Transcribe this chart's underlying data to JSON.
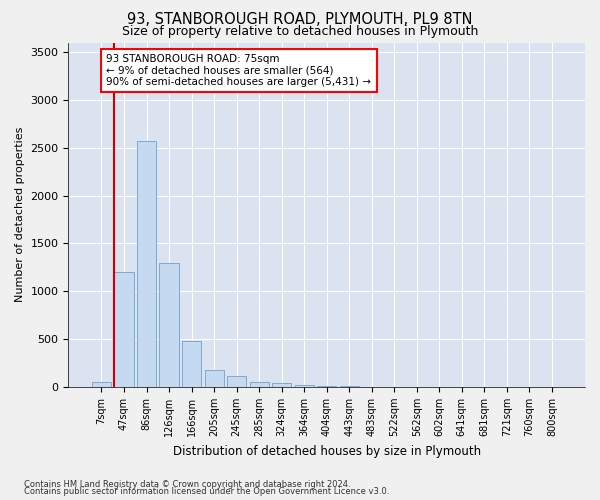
{
  "title1": "93, STANBOROUGH ROAD, PLYMOUTH, PL9 8TN",
  "title2": "Size of property relative to detached houses in Plymouth",
  "xlabel": "Distribution of detached houses by size in Plymouth",
  "ylabel": "Number of detached properties",
  "footnote1": "Contains HM Land Registry data © Crown copyright and database right 2024.",
  "footnote2": "Contains public sector information licensed under the Open Government Licence v3.0.",
  "annotation_line1": "93 STANBOROUGH ROAD: 75sqm",
  "annotation_line2": "← 9% of detached houses are smaller (564)",
  "annotation_line3": "90% of semi-detached houses are larger (5,431) →",
  "bar_color": "#c5d9f1",
  "bar_edge_color": "#7baad4",
  "marker_color": "#cc0000",
  "plot_bg_color": "#dce3f0",
  "fig_bg_color": "#f0f0f0",
  "bins": [
    "7sqm",
    "47sqm",
    "86sqm",
    "126sqm",
    "166sqm",
    "205sqm",
    "245sqm",
    "285sqm",
    "324sqm",
    "364sqm",
    "404sqm",
    "443sqm",
    "483sqm",
    "522sqm",
    "562sqm",
    "602sqm",
    "641sqm",
    "681sqm",
    "721sqm",
    "760sqm",
    "800sqm"
  ],
  "values": [
    50,
    1200,
    2570,
    1300,
    480,
    175,
    110,
    50,
    40,
    20,
    10,
    5,
    3,
    1,
    0,
    0,
    0,
    0,
    0,
    0,
    0
  ],
  "ylim": [
    0,
    3600
  ],
  "yticks": [
    0,
    500,
    1000,
    1500,
    2000,
    2500,
    3000,
    3500
  ],
  "figsize": [
    6.0,
    5.0
  ],
  "dpi": 100
}
